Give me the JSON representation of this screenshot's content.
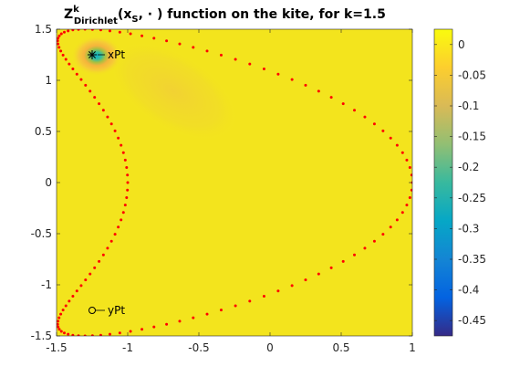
{
  "chart_data": {
    "type": "heatmap",
    "title": {
      "z": "Z",
      "sup": "k",
      "sub": "Dirichlet",
      "args_open": "(x",
      "args_sub": "S",
      "args_rest": ", · ) function on the kite, for k=1.5"
    },
    "xlim": [
      -1.5,
      1
    ],
    "ylim": [
      -1.5,
      1.5
    ],
    "xticks": [
      -1.5,
      -1,
      -0.5,
      0,
      0.5,
      1
    ],
    "xtick_labels": [
      "-1.5",
      "-1",
      "-0.5",
      "0",
      "0.5",
      "1"
    ],
    "yticks": [
      1.5,
      1,
      0.5,
      0,
      -0.5,
      -1,
      -1.5
    ],
    "ytick_labels": [
      "1.5",
      "1",
      "0.5",
      "0",
      "-0.5",
      "-1",
      "-1.5"
    ],
    "colorbar": {
      "range": [
        -0.475,
        0.025
      ],
      "ticks": [
        0,
        -0.05,
        -0.1,
        -0.15,
        -0.2,
        -0.25,
        -0.3,
        -0.35,
        -0.4,
        -0.45
      ],
      "tick_labels": [
        "0",
        "-0.05",
        "-0.1",
        "-0.15",
        "-0.2",
        "-0.25",
        "-0.3",
        "-0.35",
        "-0.4",
        "-0.45"
      ],
      "colormap": "parula"
    },
    "background_value": 0,
    "field_min": {
      "x": -1.25,
      "y": 1.25,
      "value": -0.26
    },
    "boundary_points": {
      "shape": "kite",
      "parametrization": "x(t)=cos(t)+0.65*cos(2t)-0.65, y(t)=1.5*sin(t)",
      "count": 128,
      "color": "#ff0000"
    },
    "annotations": [
      {
        "label": "xPt",
        "x": -1.25,
        "y": 1.25,
        "marker": "asterisk"
      },
      {
        "label": "yPt",
        "x": -1.25,
        "y": -1.25,
        "marker": "circle"
      }
    ],
    "grid": false
  }
}
